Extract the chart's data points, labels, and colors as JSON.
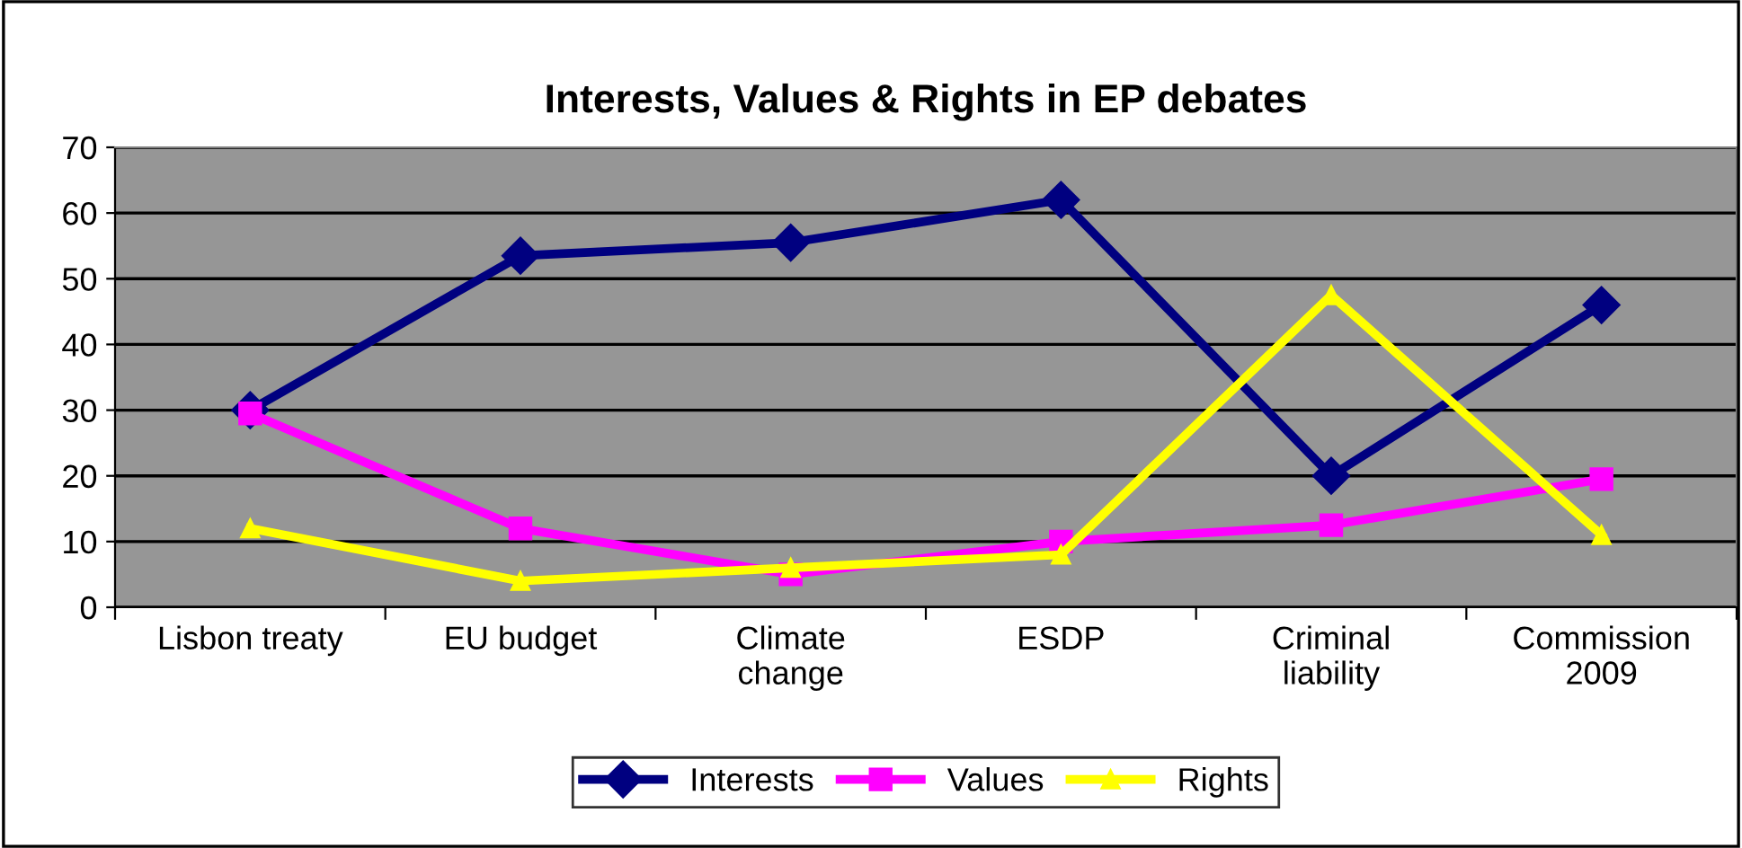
{
  "chart_data": {
    "type": "line",
    "title": "Interests, Values & Rights in EP debates",
    "categories": [
      "Lisbon treaty",
      "EU budget",
      "Climate\nchange",
      "ESDP",
      "Criminal\nliability",
      "Commission\n2009"
    ],
    "series": [
      {
        "name": "Interests",
        "color": "#000080",
        "marker": "diamond",
        "values": [
          30,
          53.5,
          55.5,
          62,
          20,
          46
        ]
      },
      {
        "name": "Values",
        "color": "#ff00ff",
        "marker": "square",
        "values": [
          29.5,
          12,
          5,
          10,
          12.5,
          19.5
        ]
      },
      {
        "name": "Rights",
        "color": "#ffff00",
        "marker": "triangle",
        "values": [
          12,
          4,
          6,
          8,
          47.5,
          11
        ]
      }
    ],
    "ylim": [
      0,
      70
    ],
    "yticks": [
      0,
      10,
      20,
      30,
      40,
      50,
      60,
      70
    ],
    "grid": "y",
    "legend": "bottom",
    "line_style": "solid"
  }
}
